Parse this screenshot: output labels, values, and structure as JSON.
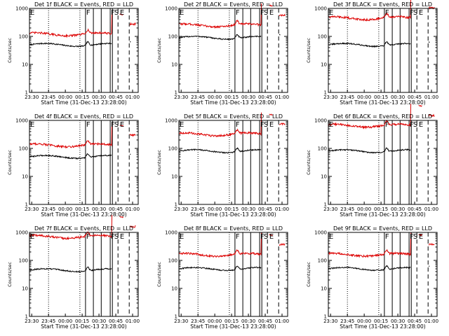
{
  "figure": {
    "background": "#ffffff",
    "colors": {
      "events": "#000000",
      "lld": "#dd0000",
      "axes": "#000000"
    }
  },
  "chart_data": [
    {
      "type": "line",
      "title": "Det 1f BLACK = Events, RED = LLD",
      "xlabel": "Start Time (31-Dec-13 23:28:00)",
      "ylabel": "Counts/sec",
      "x_ticks": [
        "23:30",
        "23:45",
        "00:00",
        "00:15",
        "00:30",
        "00:45",
        "01:00"
      ],
      "y_ticks": [
        "1",
        "10",
        "100",
        "1000"
      ],
      "y_scale": "log",
      "ylim": [
        1,
        1000
      ],
      "xlim_minutes": [
        0,
        97
      ],
      "series": [
        {
          "name": "Events",
          "color": "#000000",
          "base": 50
        },
        {
          "name": "LLD",
          "color": "#dd0000",
          "base": 120
        }
      ],
      "event_marks": [
        {
          "label": "E",
          "minutes": 0
        },
        {
          "label": "F",
          "minutes": 50
        },
        {
          "label": "F",
          "minutes": 72
        },
        {
          "label": "S",
          "minutes": 75
        },
        {
          "label": "E",
          "minutes": 80
        }
      ]
    },
    {
      "type": "line",
      "title": "Det 2f BLACK = Events, RED = LLD",
      "xlabel": "Start Time (31-Dec-13 23:28:00)",
      "ylabel": "Counts/sec",
      "x_ticks": [
        "23:30",
        "23:45",
        "00:00",
        "00:15",
        "00:30",
        "00:45",
        "01:00"
      ],
      "y_ticks": [
        "1",
        "10",
        "100",
        "1000"
      ],
      "y_scale": "log",
      "ylim": [
        1,
        1000
      ],
      "xlim_minutes": [
        0,
        97
      ],
      "series": [
        {
          "name": "Events",
          "color": "#000000",
          "base": 90
        },
        {
          "name": "LLD",
          "color": "#dd0000",
          "base": 250
        }
      ],
      "event_marks": [
        {
          "label": "E",
          "minutes": 0
        },
        {
          "label": "F",
          "minutes": 50
        },
        {
          "label": "F",
          "minutes": 72
        },
        {
          "label": "S",
          "minutes": 75
        },
        {
          "label": "E",
          "minutes": 80
        }
      ]
    },
    {
      "type": "line",
      "title": "Det 3f BLACK = Events, RED = LLD",
      "xlabel": "Start Time (31-Dec-13 23:28:00)",
      "ylabel": "Counts/sec",
      "x_ticks": [
        "23:30",
        "23:45",
        "00:00",
        "00:15",
        "00:30",
        "00:45",
        "01:00"
      ],
      "y_ticks": [
        "1",
        "10",
        "100",
        "1000"
      ],
      "y_scale": "log",
      "ylim": [
        1,
        1000
      ],
      "xlim_minutes": [
        0,
        97
      ],
      "series": [
        {
          "name": "Events",
          "color": "#000000",
          "base": 50
        },
        {
          "name": "LLD",
          "color": "#dd0000",
          "base": 450
        }
      ],
      "event_marks": [
        {
          "label": "E",
          "minutes": 0
        },
        {
          "label": "F",
          "minutes": 50
        },
        {
          "label": "F",
          "minutes": 72
        },
        {
          "label": "S",
          "minutes": 75
        },
        {
          "label": "E",
          "minutes": 80
        }
      ]
    },
    {
      "type": "line",
      "title": "Det 4f BLACK = Events, RED = LLD",
      "xlabel": "Start Time (31-Dec-13 23:28:00)",
      "ylabel": "Counts/sec",
      "x_ticks": [
        "23:30",
        "23:45",
        "00:00",
        "00:15",
        "00:30",
        "00:45",
        "01:00"
      ],
      "y_ticks": [
        "1",
        "10",
        "100",
        "1000"
      ],
      "y_scale": "log",
      "ylim": [
        1,
        1000
      ],
      "xlim_minutes": [
        0,
        97
      ],
      "series": [
        {
          "name": "Events",
          "color": "#000000",
          "base": 50
        },
        {
          "name": "LLD",
          "color": "#dd0000",
          "base": 130
        }
      ],
      "event_marks": [
        {
          "label": "E",
          "minutes": 0
        },
        {
          "label": "F",
          "minutes": 50
        },
        {
          "label": "F",
          "minutes": 72
        },
        {
          "label": "S",
          "minutes": 75
        },
        {
          "label": "E",
          "minutes": 80
        }
      ]
    },
    {
      "type": "line",
      "title": "Det 5f BLACK = Events, RED = LLD",
      "xlabel": "Start Time (31-Dec-13 23:28:00)",
      "ylabel": "Counts/sec",
      "x_ticks": [
        "23:30",
        "23:45",
        "00:00",
        "00:15",
        "00:30",
        "00:45",
        "01:00"
      ],
      "y_ticks": [
        "1",
        "10",
        "100",
        "1000"
      ],
      "y_scale": "log",
      "ylim": [
        1,
        1000
      ],
      "xlim_minutes": [
        0,
        97
      ],
      "series": [
        {
          "name": "Events",
          "color": "#000000",
          "base": 80
        },
        {
          "name": "LLD",
          "color": "#dd0000",
          "base": 320
        }
      ],
      "event_marks": [
        {
          "label": "E",
          "minutes": 0
        },
        {
          "label": "F",
          "minutes": 50
        },
        {
          "label": "F",
          "minutes": 72
        },
        {
          "label": "S",
          "minutes": 75
        },
        {
          "label": "E",
          "minutes": 80
        }
      ]
    },
    {
      "type": "line",
      "title": "Det 6f BLACK = Events, RED = LLD",
      "xlabel": "Start Time (31-Dec-13 23:28:00)",
      "ylabel": "Counts/sec",
      "x_ticks": [
        "23:30",
        "23:45",
        "00:00",
        "00:15",
        "00:30",
        "00:45",
        "01:00"
      ],
      "y_ticks": [
        "1",
        "10",
        "100",
        "1000"
      ],
      "y_scale": "log",
      "ylim": [
        1,
        1000
      ],
      "xlim_minutes": [
        0,
        97
      ],
      "series": [
        {
          "name": "Events",
          "color": "#000000",
          "base": 80
        },
        {
          "name": "LLD",
          "color": "#dd0000",
          "base": 650
        }
      ],
      "event_marks": [
        {
          "label": "E",
          "minutes": 0
        },
        {
          "label": "F",
          "minutes": 50
        },
        {
          "label": "F",
          "minutes": 72
        },
        {
          "label": "S",
          "minutes": 75
        },
        {
          "label": "E",
          "minutes": 80
        }
      ]
    },
    {
      "type": "line",
      "title": "Det 7f BLACK = Events, RED = LLD",
      "xlabel": "Start Time (31-Dec-13 23:28:00)",
      "ylabel": "Counts/sec",
      "x_ticks": [
        "23:30",
        "23:45",
        "00:00",
        "00:15",
        "00:30",
        "00:45",
        "01:00"
      ],
      "y_ticks": [
        "1",
        "10",
        "100",
        "1000"
      ],
      "y_scale": "log",
      "ylim": [
        1,
        1000
      ],
      "xlim_minutes": [
        0,
        97
      ],
      "series": [
        {
          "name": "Events",
          "color": "#000000",
          "base": 45
        },
        {
          "name": "LLD",
          "color": "#dd0000",
          "base": 700
        }
      ],
      "event_marks": [
        {
          "label": "E",
          "minutes": 0
        },
        {
          "label": "F",
          "minutes": 50
        },
        {
          "label": "F",
          "minutes": 72
        },
        {
          "label": "S",
          "minutes": 75
        },
        {
          "label": "E",
          "minutes": 80
        }
      ]
    },
    {
      "type": "line",
      "title": "Det 8f BLACK = Events, RED = LLD",
      "xlabel": "Start Time (31-Dec-13 23:28:00)",
      "ylabel": "Counts/sec",
      "x_ticks": [
        "23:30",
        "23:45",
        "00:00",
        "00:15",
        "00:30",
        "00:45",
        "01:00"
      ],
      "y_ticks": [
        "1",
        "10",
        "100",
        "1000"
      ],
      "y_scale": "log",
      "ylim": [
        1,
        1000
      ],
      "xlim_minutes": [
        0,
        97
      ],
      "series": [
        {
          "name": "Events",
          "color": "#000000",
          "base": 50
        },
        {
          "name": "LLD",
          "color": "#dd0000",
          "base": 160
        }
      ],
      "event_marks": [
        {
          "label": "E",
          "minutes": 0
        },
        {
          "label": "F",
          "minutes": 50
        },
        {
          "label": "F",
          "minutes": 72
        },
        {
          "label": "S",
          "minutes": 75
        },
        {
          "label": "E",
          "minutes": 80
        }
      ]
    },
    {
      "type": "line",
      "title": "Det 9f BLACK = Events, RED = LLD",
      "xlabel": "Start Time (31-Dec-13 23:28:00)",
      "ylabel": "Counts/sec",
      "x_ticks": [
        "23:30",
        "23:45",
        "00:00",
        "00:15",
        "00:30",
        "00:45",
        "01:00"
      ],
      "y_ticks": [
        "1",
        "10",
        "100",
        "1000"
      ],
      "y_scale": "log",
      "ylim": [
        1,
        1000
      ],
      "xlim_minutes": [
        0,
        97
      ],
      "series": [
        {
          "name": "Events",
          "color": "#000000",
          "base": 50
        },
        {
          "name": "LLD",
          "color": "#dd0000",
          "base": 160
        }
      ],
      "event_marks": [
        {
          "label": "E",
          "minutes": 0
        },
        {
          "label": "F",
          "minutes": 50
        },
        {
          "label": "F",
          "minutes": 72
        },
        {
          "label": "S",
          "minutes": 75
        },
        {
          "label": "E",
          "minutes": 80
        }
      ]
    }
  ],
  "vertical_lines": [
    {
      "minutes": 17,
      "style": "dotted"
    },
    {
      "minutes": 45,
      "style": "dotted"
    },
    {
      "minutes": 50,
      "style": "solid"
    },
    {
      "minutes": 57,
      "style": "solid"
    },
    {
      "minutes": 64,
      "style": "solid"
    },
    {
      "minutes": 72,
      "style": "solid"
    },
    {
      "minutes": 74,
      "style": "solid"
    },
    {
      "minutes": 79,
      "style": "dashed"
    },
    {
      "minutes": 89,
      "style": "dashed"
    }
  ]
}
